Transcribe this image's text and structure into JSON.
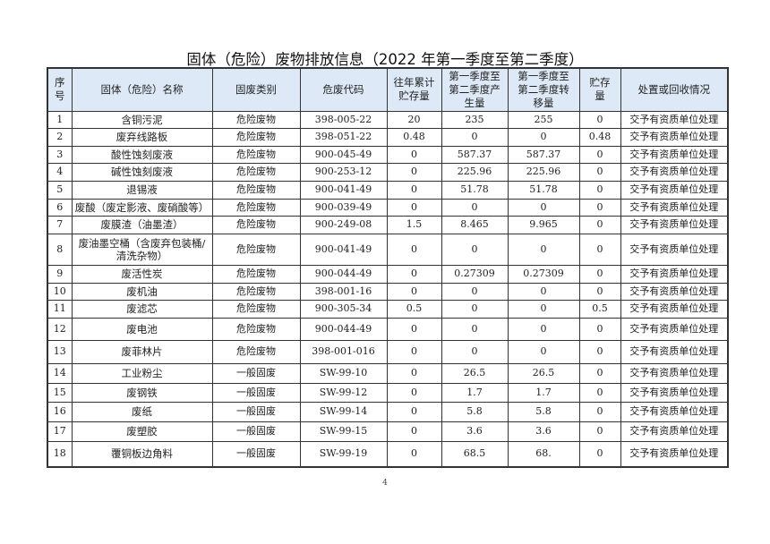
{
  "title": "固体（危险）废物排放信息（2022 年第一季度至第二季度）",
  "table": {
    "headers": [
      "序号",
      "固体（危险）名称",
      "固废类别",
      "危废代码",
      "往年累计贮存量",
      "第一季度至第二季度产生量",
      "第一季度至第二季度转移量",
      "贮存量",
      "处置或回收情况"
    ],
    "rows": [
      [
        "1",
        "含铜污泥",
        "危险废物",
        "398-005-22",
        "20",
        "235",
        "255",
        "0",
        "交予有资质单位处理"
      ],
      [
        "2",
        "废弃线路板",
        "危险废物",
        "398-051-22",
        "0.48",
        "0",
        "0",
        "0.48",
        "交予有资质单位处理"
      ],
      [
        "3",
        "酸性蚀刻废液",
        "危险废物",
        "900-045-49",
        "0",
        "587.37",
        "587.37",
        "0",
        "交予有资质单位处理"
      ],
      [
        "4",
        "碱性蚀刻废液",
        "危险废物",
        "900-253-12",
        "0",
        "225.96",
        "225.96",
        "0",
        "交予有资质单位处理"
      ],
      [
        "5",
        "退锡液",
        "危险废物",
        "900-041-49",
        "0",
        "51.78",
        "51.78",
        "0",
        "交予有资质单位处理"
      ],
      [
        "6",
        "废酸（废定影液、废硝酸等）",
        "危险废物",
        "900-039-49",
        "0",
        "0",
        "0",
        "0",
        "交予有资质单位处理"
      ],
      [
        "7",
        "废膜渣（油墨渣）",
        "危险废物",
        "900-249-08",
        "1.5",
        "8.465",
        "9.965",
        "0",
        "交予有资质单位处理"
      ],
      [
        "8",
        "废油墨空桶（含废弃包装桶/清洗杂物）",
        "危险废物",
        "900-041-49",
        "0",
        "0",
        "0",
        "0",
        "交予有资质单位处理"
      ],
      [
        "9",
        "废活性炭",
        "危险废物",
        "900-044-49",
        "0",
        "0.27309",
        "0.27309",
        "0",
        "交予有资质单位处理"
      ],
      [
        "10",
        "废机油",
        "危险废物",
        "398-001-16",
        "0",
        "0",
        "0",
        "0",
        "交予有资质单位处理"
      ],
      [
        "11",
        "废滤芯",
        "危险废物",
        "900-305-34",
        "0.5",
        "0",
        "0",
        "0.5",
        "交予有资质单位处理"
      ],
      [
        "12",
        "废电池",
        "危险废物",
        "900-044-49",
        "0",
        "0",
        "0",
        "0",
        "交予有资质单位处理"
      ],
      [
        "13",
        "废菲林片",
        "危险废物",
        "398-001-016",
        "0",
        "0",
        "0",
        "0",
        "交予有资质单位处理"
      ],
      [
        "14",
        "工业粉尘",
        "一般固废",
        "SW-99-10",
        "0",
        "26.5",
        "26.5",
        "0",
        "交予有资质单位处理"
      ],
      [
        "15",
        "废钢铁",
        "一般固废",
        "SW-99-12",
        "0",
        "1.7",
        "1.7",
        "0",
        "交予有资质单位处理"
      ],
      [
        "16",
        "废纸",
        "一般固废",
        "SW-99-14",
        "0",
        "5.8",
        "5.8",
        "0",
        "交予有资质单位处理"
      ],
      [
        "17",
        "废塑胶",
        "一般固废",
        "SW-99-15",
        "0",
        "3.6",
        "3.6",
        "0",
        "交予有资质单位处理"
      ],
      [
        "18",
        "覆铜板边角料",
        "一般固废",
        "SW-99-19",
        "0",
        "68.5",
        "68.",
        "0",
        "交予有资质单位处理"
      ]
    ]
  },
  "page_number": "4",
  "colors": {
    "header_bg": "#dde9f6"
  }
}
